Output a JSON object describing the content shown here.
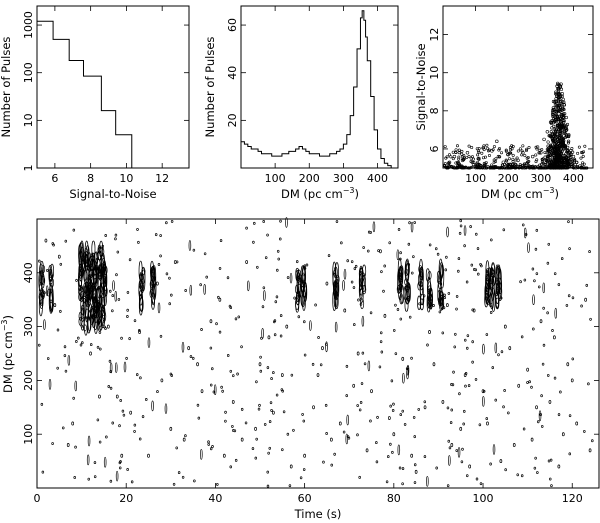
{
  "chart_data": [
    {
      "id": "sn_hist",
      "type": "line",
      "xlabel": "Signal-to-Noise",
      "ylabel": "Number of Pulses",
      "xlim": [
        5,
        13.5
      ],
      "ylim_log10": [
        0,
        3.4
      ],
      "yscale": "log",
      "xticks": [
        6,
        8,
        10,
        12
      ],
      "xtick_labels": [
        "6",
        "8",
        "10",
        "12"
      ],
      "yticks": [
        1,
        10,
        100,
        1000
      ],
      "ytick_labels": [
        "1",
        "10",
        "100",
        "1000"
      ],
      "steps": [
        {
          "x0": 5.0,
          "x1": 5.9,
          "y": 1200
        },
        {
          "x0": 5.9,
          "x1": 6.8,
          "y": 500
        },
        {
          "x0": 6.8,
          "x1": 7.6,
          "y": 180
        },
        {
          "x0": 7.6,
          "x1": 8.6,
          "y": 85
        },
        {
          "x0": 8.6,
          "x1": 9.4,
          "y": 16
        },
        {
          "x0": 9.4,
          "x1": 10.3,
          "y": 5
        },
        {
          "x0": 10.3,
          "x1": 10.3,
          "y": 1
        }
      ]
    },
    {
      "id": "dm_hist",
      "type": "line",
      "xlabel": "DM (pc cm",
      "xlabel_sup": "−3",
      "xlabel_tail": ")",
      "ylabel": "Number of Pulses",
      "xlim": [
        0,
        460
      ],
      "ylim": [
        0,
        68
      ],
      "xticks": [
        100,
        200,
        300,
        400
      ],
      "xtick_labels": [
        "100",
        "200",
        "300",
        "400"
      ],
      "yticks": [
        20,
        40,
        60
      ],
      "ytick_labels": [
        "20",
        "40",
        "60"
      ],
      "x": [
        0,
        10,
        20,
        30,
        40,
        50,
        60,
        70,
        80,
        90,
        100,
        110,
        120,
        130,
        140,
        150,
        160,
        170,
        180,
        190,
        200,
        210,
        220,
        230,
        240,
        250,
        260,
        270,
        280,
        290,
        300,
        310,
        320,
        330,
        340,
        350,
        355,
        360,
        365,
        370,
        380,
        390,
        400,
        410,
        420,
        430,
        440,
        450,
        460
      ],
      "y": [
        11,
        10,
        9,
        8,
        8,
        7,
        6,
        6,
        6,
        5,
        5,
        5,
        6,
        6,
        7,
        7,
        8,
        9,
        8,
        7,
        6,
        6,
        6,
        5,
        5,
        5,
        6,
        6,
        7,
        8,
        10,
        14,
        22,
        34,
        50,
        63,
        66,
        62,
        55,
        45,
        30,
        16,
        8,
        4,
        2,
        1,
        0,
        0,
        0
      ]
    },
    {
      "id": "sn_vs_dm",
      "type": "scatter",
      "xlabel": "DM (pc cm",
      "xlabel_sup": "−3",
      "xlabel_tail": ")",
      "ylabel": "Signal-to-Noise",
      "xlim": [
        0,
        460
      ],
      "ylim": [
        5,
        13.5
      ],
      "xticks": [
        100,
        200,
        300,
        400
      ],
      "xtick_labels": [
        "100",
        "200",
        "300",
        "400"
      ],
      "yticks": [
        6,
        8,
        10,
        12
      ],
      "ytick_labels": [
        "6",
        "8",
        "10",
        "12"
      ],
      "cluster": {
        "center_dm": 355,
        "spread_dm": 30,
        "peak_sn": 9.5
      },
      "points": [
        [
          20,
          5.3
        ],
        [
          35,
          5.6
        ],
        [
          50,
          5.2
        ],
        [
          60,
          5.4
        ],
        [
          75,
          5.8
        ],
        [
          90,
          5.3
        ],
        [
          110,
          5.5
        ],
        [
          130,
          5.2
        ],
        [
          150,
          5.9
        ],
        [
          165,
          6.4
        ],
        [
          170,
          5.6
        ],
        [
          185,
          5.3
        ],
        [
          200,
          5.7
        ],
        [
          215,
          5.2
        ],
        [
          230,
          5.4
        ],
        [
          245,
          5.8
        ],
        [
          260,
          5.3
        ],
        [
          275,
          5.6
        ],
        [
          290,
          6.1
        ],
        [
          300,
          5.8
        ],
        [
          310,
          6.5
        ],
        [
          320,
          6.9
        ],
        [
          330,
          7.4
        ],
        [
          335,
          6.2
        ],
        [
          340,
          7.9
        ],
        [
          345,
          8.3
        ],
        [
          350,
          6.8
        ],
        [
          355,
          8.9
        ],
        [
          358,
          7.3
        ],
        [
          362,
          9.4
        ],
        [
          365,
          7.8
        ],
        [
          368,
          8.1
        ],
        [
          372,
          6.9
        ],
        [
          378,
          7.2
        ],
        [
          385,
          6.4
        ],
        [
          392,
          5.9
        ],
        [
          400,
          5.6
        ],
        [
          410,
          5.3
        ],
        [
          420,
          5.1
        ]
      ]
    },
    {
      "id": "dm_vs_time",
      "type": "scatter",
      "xlabel": "Time (s)",
      "ylabel": "DM (pc cm",
      "ylabel_sup": "−3",
      "ylabel_tail": ")",
      "xlim": [
        0,
        126
      ],
      "ylim": [
        0,
        500
      ],
      "xticks": [
        0,
        20,
        40,
        60,
        80,
        100,
        120
      ],
      "xtick_labels": [
        "0",
        "20",
        "40",
        "60",
        "80",
        "100",
        "120"
      ],
      "yticks": [
        100,
        200,
        300,
        400
      ],
      "ytick_labels": [
        "100",
        "200",
        "300",
        "400"
      ],
      "pulses": [
        1,
        3,
        10,
        11,
        12,
        13,
        14,
        15,
        23.5,
        26,
        58.6,
        59.8,
        67,
        73,
        81.5,
        83,
        86,
        88,
        90.5,
        101,
        102,
        103.5
      ],
      "pulse_dm": 372,
      "points": [
        [
          2,
          460
        ],
        [
          5,
          430
        ],
        [
          8,
          120
        ],
        [
          12,
          250
        ],
        [
          16,
          300
        ],
        [
          18,
          170
        ],
        [
          21,
          140
        ],
        [
          25,
          60
        ],
        [
          28,
          200
        ],
        [
          31,
          420
        ],
        [
          33,
          90
        ],
        [
          36,
          230
        ],
        [
          39,
          310
        ],
        [
          42,
          60
        ],
        [
          44,
          160
        ],
        [
          47,
          420
        ],
        [
          49,
          110
        ],
        [
          52,
          280
        ],
        [
          55,
          210
        ],
        [
          57,
          40
        ],
        [
          62,
          150
        ],
        [
          64,
          260
        ],
        [
          66,
          90
        ],
        [
          69,
          330
        ],
        [
          71,
          190
        ],
        [
          74,
          70
        ],
        [
          77,
          440
        ],
        [
          79,
          130
        ],
        [
          82,
          240
        ],
        [
          85,
          30
        ],
        [
          88,
          290
        ],
        [
          91,
          160
        ],
        [
          93,
          80
        ],
        [
          96,
          210
        ],
        [
          98,
          330
        ],
        [
          101,
          120
        ],
        [
          104,
          50
        ],
        [
          106,
          260
        ],
        [
          108,
          190
        ],
        [
          111,
          90
        ],
        [
          113,
          310
        ],
        [
          115,
          160
        ],
        [
          117,
          40
        ],
        [
          119,
          230
        ],
        [
          121,
          120
        ],
        [
          123,
          350
        ],
        [
          4,
          340
        ],
        [
          7,
          80
        ],
        [
          14,
          170
        ],
        [
          19,
          60
        ],
        [
          23,
          290
        ],
        [
          27,
          380
        ],
        [
          30,
          110
        ],
        [
          34,
          260
        ],
        [
          37,
          180
        ],
        [
          41,
          350
        ],
        [
          46,
          90
        ],
        [
          50,
          230
        ],
        [
          53,
          140
        ],
        [
          56,
          300
        ],
        [
          60,
          60
        ],
        [
          63,
          210
        ],
        [
          65,
          380
        ],
        [
          68,
          120
        ],
        [
          72,
          250
        ],
        [
          75,
          180
        ],
        [
          78,
          320
        ],
        [
          80,
          100
        ],
        [
          84,
          60
        ],
        [
          87,
          150
        ],
        [
          89,
          230
        ],
        [
          92,
          340
        ],
        [
          95,
          110
        ],
        [
          97,
          40
        ],
        [
          100,
          180
        ],
        [
          105,
          300
        ],
        [
          107,
          80
        ],
        [
          110,
          220
        ],
        [
          112,
          150
        ],
        [
          116,
          280
        ],
        [
          118,
          100
        ],
        [
          120,
          200
        ],
        [
          124,
          70
        ]
      ]
    }
  ]
}
